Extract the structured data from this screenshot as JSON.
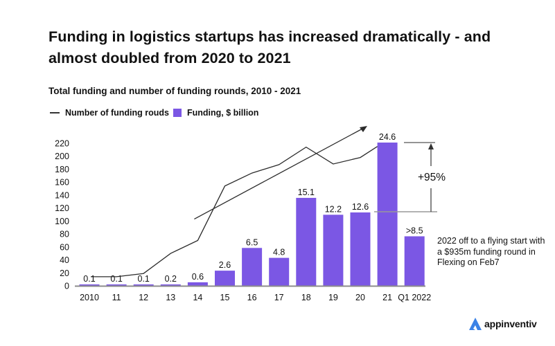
{
  "title": "Funding in logistics startups has increased dramatically - and almost doubled from 2020 to 2021",
  "subtitle": "Total funding and number of funding rounds, 2010 - 2021",
  "legend": {
    "line_label": "Number of funding rouds",
    "bar_label": "Funding, $ billion"
  },
  "note": "2022 off to a flying start with a $935m funding round in Flexing on Feb7",
  "annotation": "+95%",
  "brand": {
    "name": "appinventiv",
    "icon": "appinventiv-logo-icon",
    "color": "#3b82e6"
  },
  "colors": {
    "bar": "#7b57e4",
    "line": "#2b2b2b",
    "axis": "#8c8c8c",
    "text": "#111111"
  },
  "chart_data": {
    "type": "bar",
    "title": "Funding in logistics startups has increased dramatically - and almost doubled from 2020 to 2021",
    "subtitle": "Total funding and number of funding rounds, 2010 - 2021",
    "xlabel": "",
    "ylabel": "",
    "ylim": [
      0,
      220
    ],
    "yticks": [
      0,
      20,
      40,
      60,
      80,
      100,
      120,
      140,
      160,
      180,
      200,
      220
    ],
    "grid": false,
    "legend_position": "top-left",
    "categories": [
      "2010",
      "11",
      "12",
      "13",
      "14",
      "15",
      "16",
      "17",
      "18",
      "19",
      "20",
      "21",
      "Q1 2022"
    ],
    "series": [
      {
        "name": "Funding, $ billion",
        "type": "bar",
        "values": [
          0.1,
          0.1,
          0.1,
          0.2,
          0.6,
          2.6,
          6.5,
          4.8,
          15.1,
          12.2,
          12.6,
          24.6,
          8.5
        ],
        "labels": [
          "0.1",
          "0.1",
          "0.1",
          "0.2",
          "0.6",
          "2.6",
          "6.5",
          "4.8",
          "15.1",
          "12.2",
          "12.6",
          "24.6",
          ">8.5"
        ]
      },
      {
        "name": "Number of funding rouds",
        "type": "line",
        "values": [
          14,
          14,
          19,
          50,
          70,
          154,
          174,
          187,
          214,
          188,
          198,
          215,
          null
        ]
      }
    ],
    "trend_arrow": {
      "from_category": "14",
      "from_value": 103,
      "to_value": 247,
      "to_x_category_offset": 18.3
    },
    "annotations": [
      {
        "text": "+95%",
        "type": "bracket",
        "from_category": "20",
        "to_category": "21"
      },
      {
        "text": "2022 off to a flying start with a $935m funding round in Flexing on Feb7",
        "anchor": "Q1 2022"
      }
    ]
  }
}
